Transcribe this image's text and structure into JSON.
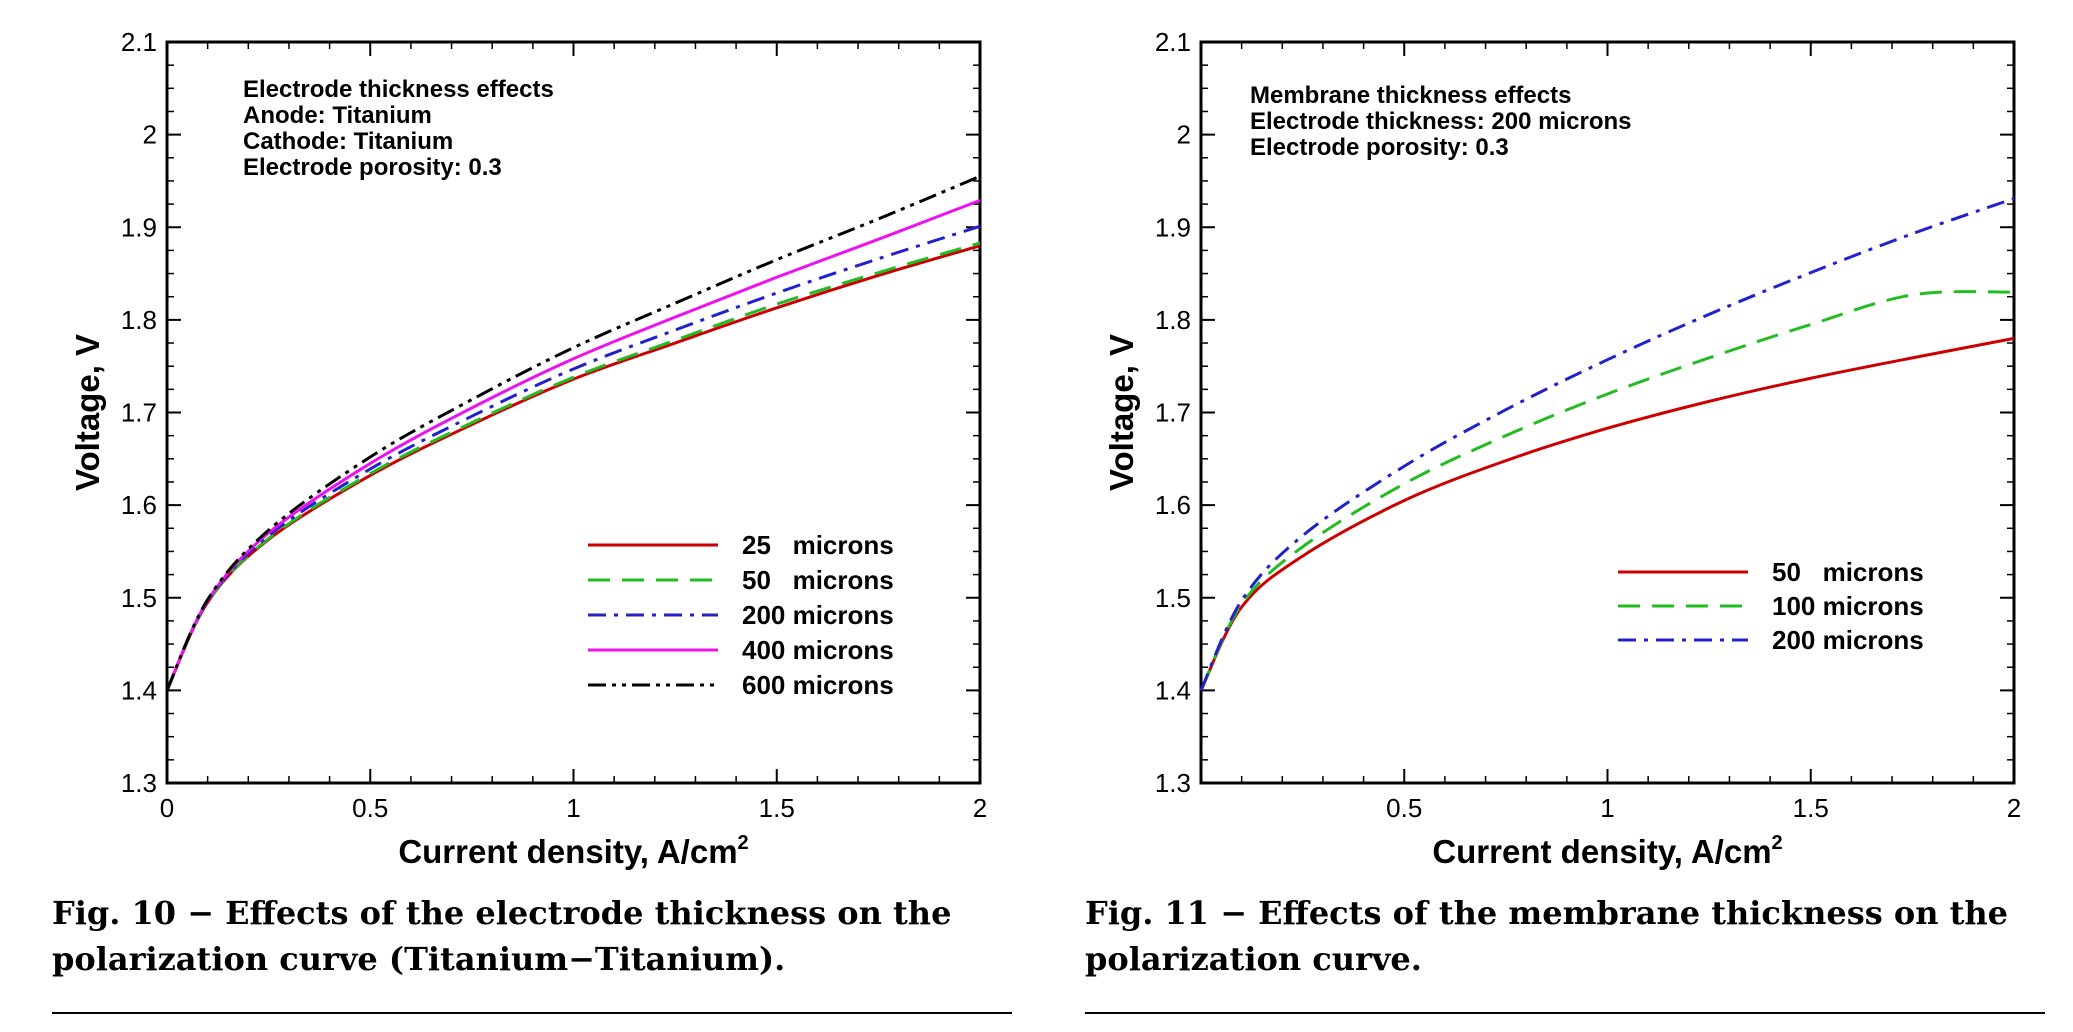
{
  "chart_data": [
    {
      "type": "line",
      "title": "",
      "xlabel": "Current density, A/cm",
      "xlabel_sup": "2",
      "ylabel": "Voltage, V",
      "xlim": [
        0,
        2
      ],
      "ylim": [
        1.3,
        2.1
      ],
      "xticks": [
        "0",
        "0.5",
        "1",
        "1.5",
        "2"
      ],
      "yticks": [
        "1.3",
        "1.4",
        "1.5",
        "1.6",
        "1.7",
        "1.8",
        "1.9",
        "2",
        "2.1"
      ],
      "grid": false,
      "legend_position": "bottom-right",
      "annotations": [
        "Electrode thickness effects",
        "Anode: Titanium",
        "Cathode: Titanium",
        "Electrode porosity: 0.3"
      ],
      "x": [
        0.0,
        0.1,
        0.25,
        0.5,
        0.75,
        1.0,
        1.25,
        1.5,
        1.75,
        2.0
      ],
      "series": [
        {
          "name": "25   microns",
          "color": "#cc0000",
          "dash": "solid",
          "values": [
            1.4,
            1.495,
            1.563,
            1.632,
            1.687,
            1.736,
            1.775,
            1.813,
            1.848,
            1.88
          ]
        },
        {
          "name": "50   microns",
          "color": "#22bb22",
          "dash": "dashed",
          "values": [
            1.4,
            1.495,
            1.564,
            1.634,
            1.689,
            1.738,
            1.778,
            1.817,
            1.851,
            1.883
          ]
        },
        {
          "name": "200 microns",
          "color": "#2222cc",
          "dash": "dashdot",
          "values": [
            1.4,
            1.496,
            1.567,
            1.639,
            1.696,
            1.747,
            1.789,
            1.829,
            1.866,
            1.901
          ]
        },
        {
          "name": "400 microns",
          "color": "#ee11ee",
          "dash": "solid",
          "values": [
            1.4,
            1.497,
            1.57,
            1.645,
            1.705,
            1.758,
            1.803,
            1.846,
            1.887,
            1.929
          ]
        },
        {
          "name": "600 microns",
          "color": "#000000",
          "dash": "dashdotdot",
          "values": [
            1.4,
            1.498,
            1.573,
            1.652,
            1.714,
            1.77,
            1.818,
            1.865,
            1.909,
            1.955
          ]
        }
      ]
    },
    {
      "type": "line",
      "title": "",
      "xlabel": "Current density, A/cm",
      "xlabel_sup": "2",
      "ylabel": "Voltage, V",
      "xlim": [
        0,
        2
      ],
      "ylim": [
        1.3,
        2.1
      ],
      "xticks": [
        "",
        "0.5",
        "1",
        "1.5",
        "2"
      ],
      "yticks": [
        "1.3",
        "1.4",
        "1.5",
        "1.6",
        "1.7",
        "1.8",
        "1.9",
        "2",
        "2.1"
      ],
      "grid": false,
      "legend_position": "bottom-right",
      "annotations": [
        "Membrane thickness effects",
        "Electrode thickness: 200 microns",
        "Electrode porosity: 0.3"
      ],
      "x": [
        0.0,
        0.1,
        0.25,
        0.5,
        0.75,
        1.0,
        1.25,
        1.5,
        1.75,
        2.0
      ],
      "series": [
        {
          "name": "50   microns",
          "color": "#cc0000",
          "dash": "solid",
          "values": [
            1.4,
            1.49,
            1.545,
            1.605,
            1.648,
            1.683,
            1.712,
            1.737,
            1.759,
            1.78
          ]
        },
        {
          "name": "100 microns",
          "color": "#22bb22",
          "dash": "dashed",
          "values": [
            1.4,
            1.493,
            1.555,
            1.623,
            1.675,
            1.72,
            1.759,
            1.795,
            1.827,
            1.83
          ]
        },
        {
          "name": "200 microns",
          "color": "#2222cc",
          "dash": "dashdot",
          "values": [
            1.4,
            1.497,
            1.567,
            1.642,
            1.703,
            1.757,
            1.806,
            1.851,
            1.893,
            1.931
          ]
        }
      ]
    }
  ],
  "captions": [
    {
      "line1": "Fig. 10 − Effects of the electrode thickness on the",
      "line2": "polarization curve (Titanium−Titanium)."
    },
    {
      "line1": "Fig. 11 − Effects of the membrane thickness on the",
      "line2": "polarization curve."
    }
  ]
}
